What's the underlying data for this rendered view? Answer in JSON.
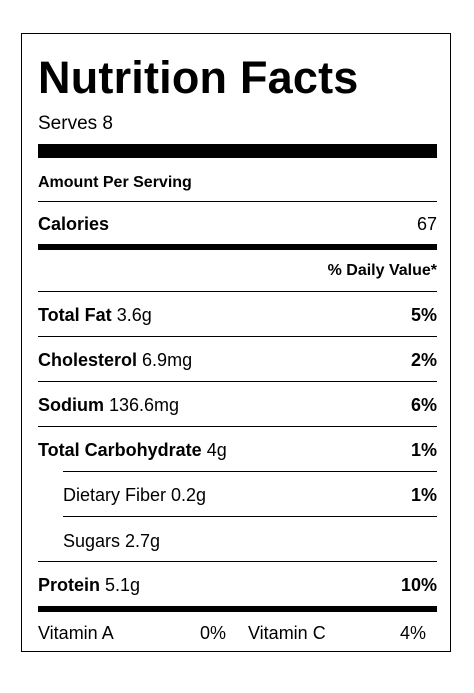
{
  "title": "Nutrition Facts",
  "serves": "Serves 8",
  "amount_per_serving": "Amount Per Serving",
  "calories": {
    "label": "Calories",
    "value": "67"
  },
  "daily_value_header": "% Daily Value*",
  "nutrients": [
    {
      "name": "Total Fat",
      "amount": "3.6g",
      "dv": "5%"
    },
    {
      "name": "Cholesterol",
      "amount": "6.9mg",
      "dv": "2%"
    },
    {
      "name": "Sodium",
      "amount": "136.6mg",
      "dv": "6%"
    },
    {
      "name": "Total Carbohydrate",
      "amount": "4g",
      "dv": "1%"
    }
  ],
  "sub_nutrients": [
    {
      "text": "Dietary Fiber 0.2g",
      "dv": "1%"
    },
    {
      "text": "Sugars 2.7g",
      "dv": ""
    }
  ],
  "protein": {
    "name": "Protein",
    "amount": "5.1g",
    "dv": "10%"
  },
  "vitamins": [
    {
      "name": "Vitamin A",
      "value": "0%"
    },
    {
      "name": "Vitamin C",
      "value": "4%"
    }
  ]
}
